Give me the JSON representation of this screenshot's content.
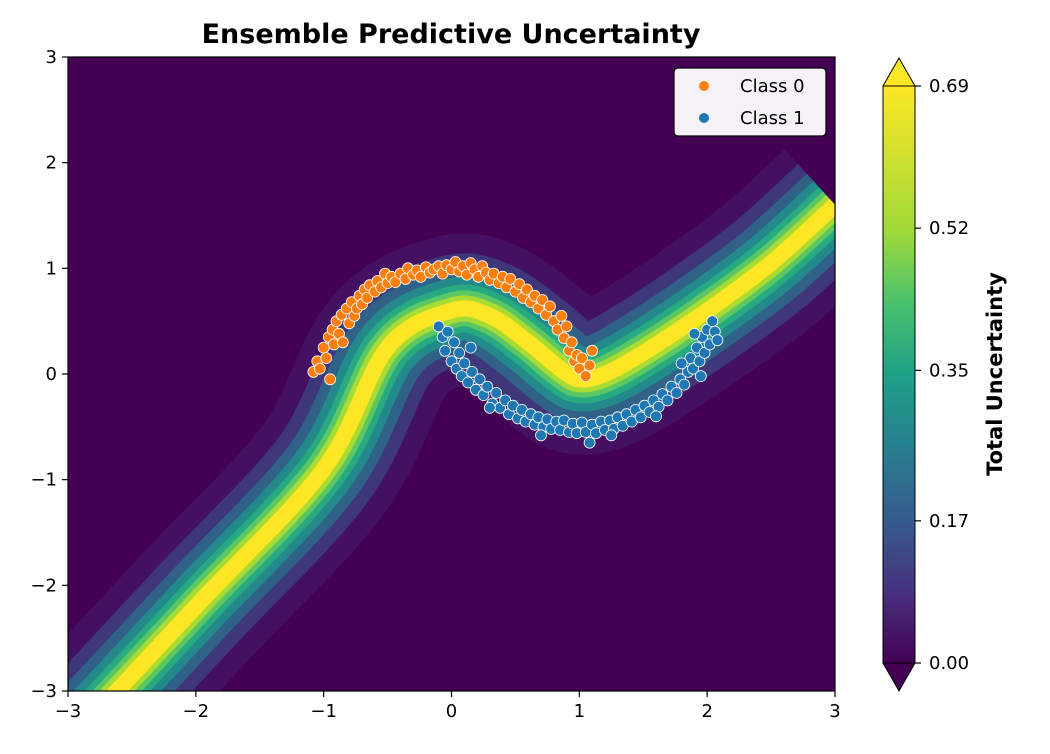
{
  "chart_data": {
    "type": "scatter",
    "title": "Ensemble Predictive Uncertainty",
    "xlabel": "",
    "ylabel": "",
    "xlim": [
      -3,
      3
    ],
    "ylim": [
      -3,
      3
    ],
    "x_ticks": [
      -3,
      -2,
      -1,
      0,
      1,
      2,
      3
    ],
    "y_ticks": [
      -3,
      -2,
      -1,
      0,
      1,
      2,
      3
    ],
    "x_tick_labels": [
      "−3",
      "−2",
      "−1",
      "0",
      "1",
      "2",
      "3"
    ],
    "y_tick_labels": [
      "−3",
      "−2",
      "−1",
      "0",
      "1",
      "2",
      "3"
    ],
    "grid": false,
    "legend": {
      "position": "top-right",
      "entries": [
        {
          "label": "Class 0",
          "color": "#ff7f0e"
        },
        {
          "label": "Class 1",
          "color": "#1f77b4"
        }
      ]
    },
    "colorbar": {
      "label": "Total Uncertainty",
      "colormap": "viridis",
      "range": [
        0.0,
        0.69
      ],
      "ticks": [
        0.0,
        0.17,
        0.35,
        0.52,
        0.69
      ],
      "tick_labels": [
        "0.00",
        "0.17",
        "0.35",
        "0.52",
        "0.69"
      ],
      "extend": "both"
    },
    "background": {
      "description": "Predictive-entropy heatmap: high (yellow) along the S-shaped decision boundary, low (dark purple) elsewhere",
      "boundary": [
        [
          -3.0,
          -3.5
        ],
        [
          -2.0,
          -2.2
        ],
        [
          -1.0,
          -0.9
        ],
        [
          -0.5,
          0.25
        ],
        [
          0.0,
          0.6
        ],
        [
          0.3,
          0.55
        ],
        [
          0.6,
          0.3
        ],
        [
          0.85,
          0.05
        ],
        [
          1.0,
          -0.05
        ],
        [
          1.2,
          0.0
        ],
        [
          1.5,
          0.2
        ],
        [
          2.0,
          0.6
        ],
        [
          2.5,
          1.05
        ],
        [
          3.0,
          1.6
        ]
      ]
    },
    "series": [
      {
        "name": "Class 0",
        "color": "#ff7f0e",
        "points": [
          [
            -1.08,
            0.02
          ],
          [
            -1.05,
            0.12
          ],
          [
            -1.03,
            0.05
          ],
          [
            -1.0,
            0.25
          ],
          [
            -0.98,
            0.15
          ],
          [
            -0.96,
            0.35
          ],
          [
            -0.95,
            -0.05
          ],
          [
            -0.93,
            0.42
          ],
          [
            -0.92,
            0.28
          ],
          [
            -0.9,
            0.5
          ],
          [
            -0.88,
            0.38
          ],
          [
            -0.86,
            0.56
          ],
          [
            -0.85,
            0.3
          ],
          [
            -0.82,
            0.62
          ],
          [
            -0.8,
            0.48
          ],
          [
            -0.78,
            0.68
          ],
          [
            -0.76,
            0.55
          ],
          [
            -0.74,
            0.62
          ],
          [
            -0.72,
            0.74
          ],
          [
            -0.7,
            0.66
          ],
          [
            -0.68,
            0.8
          ],
          [
            -0.66,
            0.72
          ],
          [
            -0.64,
            0.84
          ],
          [
            -0.6,
            0.78
          ],
          [
            -0.58,
            0.88
          ],
          [
            -0.55,
            0.82
          ],
          [
            -0.52,
            0.95
          ],
          [
            -0.5,
            0.86
          ],
          [
            -0.47,
            0.92
          ],
          [
            -0.44,
            0.87
          ],
          [
            -0.4,
            0.95
          ],
          [
            -0.36,
            0.9
          ],
          [
            -0.34,
            1.0
          ],
          [
            -0.3,
            0.94
          ],
          [
            -0.27,
            0.98
          ],
          [
            -0.24,
            0.92
          ],
          [
            -0.2,
            1.01
          ],
          [
            -0.17,
            0.96
          ],
          [
            -0.14,
            0.99
          ],
          [
            -0.1,
            1.02
          ],
          [
            -0.07,
            0.95
          ],
          [
            -0.04,
            1.03
          ],
          [
            0.0,
            0.99
          ],
          [
            0.03,
            1.06
          ],
          [
            0.06,
            0.97
          ],
          [
            0.09,
            1.02
          ],
          [
            0.12,
            0.94
          ],
          [
            0.15,
            1.05
          ],
          [
            0.18,
            0.99
          ],
          [
            0.21,
            0.92
          ],
          [
            0.24,
            1.02
          ],
          [
            0.27,
            0.96
          ],
          [
            0.3,
            0.89
          ],
          [
            0.33,
            0.95
          ],
          [
            0.37,
            0.86
          ],
          [
            0.4,
            0.92
          ],
          [
            0.43,
            0.82
          ],
          [
            0.46,
            0.9
          ],
          [
            0.5,
            0.78
          ],
          [
            0.53,
            0.85
          ],
          [
            0.56,
            0.72
          ],
          [
            0.59,
            0.8
          ],
          [
            0.62,
            0.68
          ],
          [
            0.65,
            0.74
          ],
          [
            0.68,
            0.62
          ],
          [
            0.71,
            0.7
          ],
          [
            0.74,
            0.56
          ],
          [
            0.77,
            0.64
          ],
          [
            0.8,
            0.5
          ],
          [
            0.83,
            0.42
          ],
          [
            0.86,
            0.55
          ],
          [
            0.88,
            0.34
          ],
          [
            0.9,
            0.45
          ],
          [
            0.92,
            0.22
          ],
          [
            0.94,
            0.3
          ],
          [
            0.96,
            0.12
          ],
          [
            0.98,
            0.18
          ],
          [
            1.0,
            0.05
          ],
          [
            1.02,
            0.15
          ],
          [
            1.05,
            -0.02
          ],
          [
            1.08,
            0.08
          ],
          [
            1.1,
            0.22
          ]
        ]
      },
      {
        "name": "Class 1",
        "color": "#1f77b4",
        "points": [
          [
            -0.1,
            0.45
          ],
          [
            -0.07,
            0.35
          ],
          [
            -0.05,
            0.22
          ],
          [
            -0.03,
            0.4
          ],
          [
            0.0,
            0.12
          ],
          [
            0.02,
            0.3
          ],
          [
            0.04,
            0.05
          ],
          [
            0.06,
            0.2
          ],
          [
            0.08,
            -0.02
          ],
          [
            0.1,
            0.1
          ],
          [
            0.13,
            -0.08
          ],
          [
            0.16,
            0.02
          ],
          [
            0.19,
            -0.15
          ],
          [
            0.22,
            -0.05
          ],
          [
            0.25,
            -0.2
          ],
          [
            0.28,
            -0.12
          ],
          [
            0.32,
            -0.28
          ],
          [
            0.35,
            -0.18
          ],
          [
            0.38,
            -0.32
          ],
          [
            0.42,
            -0.25
          ],
          [
            0.45,
            -0.38
          ],
          [
            0.48,
            -0.3
          ],
          [
            0.52,
            -0.42
          ],
          [
            0.55,
            -0.34
          ],
          [
            0.58,
            -0.45
          ],
          [
            0.62,
            -0.38
          ],
          [
            0.65,
            -0.48
          ],
          [
            0.68,
            -0.41
          ],
          [
            0.72,
            -0.5
          ],
          [
            0.75,
            -0.43
          ],
          [
            0.78,
            -0.52
          ],
          [
            0.82,
            -0.45
          ],
          [
            0.85,
            -0.53
          ],
          [
            0.88,
            -0.44
          ],
          [
            0.92,
            -0.55
          ],
          [
            0.95,
            -0.47
          ],
          [
            0.98,
            -0.56
          ],
          [
            1.02,
            -0.46
          ],
          [
            1.05,
            -0.55
          ],
          [
            1.08,
            -0.65
          ],
          [
            1.1,
            -0.48
          ],
          [
            1.13,
            -0.56
          ],
          [
            1.17,
            -0.45
          ],
          [
            1.2,
            -0.53
          ],
          [
            1.24,
            -0.44
          ],
          [
            1.27,
            -0.52
          ],
          [
            1.3,
            -0.41
          ],
          [
            1.34,
            -0.49
          ],
          [
            1.37,
            -0.38
          ],
          [
            1.41,
            -0.45
          ],
          [
            1.44,
            -0.34
          ],
          [
            1.48,
            -0.41
          ],
          [
            1.51,
            -0.3
          ],
          [
            1.55,
            -0.36
          ],
          [
            1.58,
            -0.25
          ],
          [
            1.62,
            -0.31
          ],
          [
            1.65,
            -0.19
          ],
          [
            1.69,
            -0.25
          ],
          [
            1.72,
            -0.12
          ],
          [
            1.76,
            -0.18
          ],
          [
            1.79,
            -0.05
          ],
          [
            1.82,
            -0.1
          ],
          [
            1.85,
            0.02
          ],
          [
            1.87,
            0.15
          ],
          [
            1.89,
            0.05
          ],
          [
            1.92,
            0.25
          ],
          [
            1.94,
            0.12
          ],
          [
            1.96,
            0.35
          ],
          [
            1.98,
            0.2
          ],
          [
            2.0,
            0.42
          ],
          [
            2.02,
            0.28
          ],
          [
            2.04,
            0.5
          ],
          [
            2.06,
            0.4
          ],
          [
            2.08,
            0.32
          ],
          [
            1.9,
            0.38
          ],
          [
            1.95,
            -0.02
          ],
          [
            0.15,
            0.25
          ],
          [
            0.3,
            -0.32
          ],
          [
            0.7,
            -0.58
          ],
          [
            1.25,
            -0.58
          ],
          [
            1.6,
            -0.4
          ],
          [
            1.8,
            0.1
          ]
        ]
      }
    ]
  }
}
